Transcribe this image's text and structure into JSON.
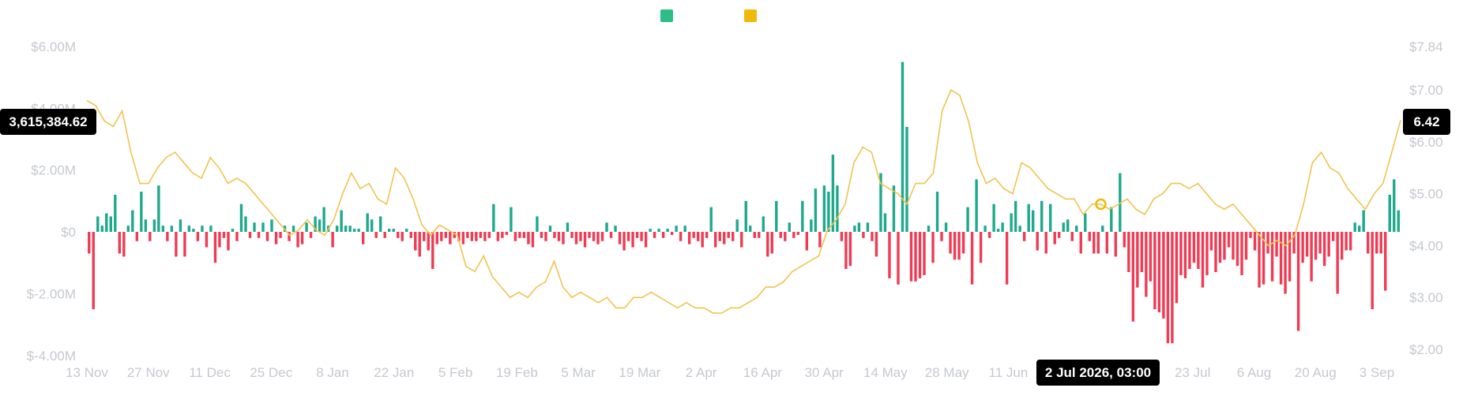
{
  "legend": [
    {
      "name": "",
      "color": "#2ebd85"
    },
    {
      "name": "",
      "color": "#f0b90b"
    }
  ],
  "colors": {
    "positive": "#1fa98c",
    "negative": "#ef3b54",
    "price_line": "#f0c350",
    "tick_text": "#c5c8ce",
    "badge_bg": "#000000"
  },
  "chart_data": {
    "type": "bar",
    "x_ticks": [
      "13 Nov",
      "27 Nov",
      "11 Dec",
      "25 Dec",
      "8 Jan",
      "22 Jan",
      "5 Feb",
      "19 Feb",
      "5 Mar",
      "19 Mar",
      "2 Apr",
      "16 Apr",
      "30 Apr",
      "14 May",
      "28 May",
      "11 Jun",
      "25 Jun",
      "9 Jul",
      "23 Jul",
      "6 Aug",
      "20 Aug",
      "3 Sep"
    ],
    "y_left": {
      "ticks": [
        "$6.00M",
        "$4.00M",
        "$2.00M",
        "$0",
        "$-2.00M",
        "$-4.00M"
      ],
      "values": [
        6000000,
        4000000,
        2000000,
        0,
        -2000000,
        -4000000
      ],
      "ylim": [
        -4000000,
        6000000
      ]
    },
    "y_right": {
      "ticks": [
        "$7.84",
        "$7.00",
        "$6.00",
        "$5.00",
        "$4.00",
        "$3.00",
        "$2.00"
      ],
      "values": [
        7.84,
        7,
        6,
        5,
        4,
        3,
        2
      ],
      "ylim": [
        2,
        7.84
      ]
    },
    "series": [
      {
        "kind": "bars",
        "values": [
          -700000,
          -2500000,
          500000,
          200000,
          600000,
          500000,
          1200000,
          -700000,
          -800000,
          200000,
          700000,
          -300000,
          1300000,
          400000,
          -300000,
          400000,
          1500000,
          200000,
          -300000,
          200000,
          -800000,
          400000,
          -800000,
          200000,
          100000,
          -300000,
          200000,
          -500000,
          200000,
          -1000000,
          -500000,
          -200000,
          -600000,
          100000,
          -300000,
          900000,
          500000,
          -200000,
          300000,
          -200000,
          300000,
          -300000,
          400000,
          -400000,
          -200000,
          200000,
          -300000,
          200000,
          -500000,
          -400000,
          300000,
          -200000,
          500000,
          400000,
          800000,
          200000,
          -500000,
          200000,
          700000,
          200000,
          200000,
          100000,
          100000,
          -400000,
          600000,
          400000,
          -200000,
          500000,
          -200000,
          100000,
          100000,
          -200000,
          -300000,
          100000,
          -200000,
          -600000,
          -800000,
          -300000,
          -600000,
          -1200000,
          -400000,
          -300000,
          -200000,
          -400000,
          -200000,
          -300000,
          -400000,
          -200000,
          -300000,
          -300000,
          -200000,
          -300000,
          -200000,
          900000,
          -300000,
          -200000,
          -100000,
          800000,
          -300000,
          -200000,
          -200000,
          -400000,
          -500000,
          500000,
          -200000,
          -300000,
          200000,
          -200000,
          -300000,
          -400000,
          300000,
          -200000,
          -400000,
          -300000,
          -500000,
          -200000,
          -300000,
          -400000,
          -300000,
          300000,
          -200000,
          200000,
          -400000,
          -600000,
          -300000,
          -500000,
          -200000,
          -300000,
          -500000,
          100000,
          -200000,
          100000,
          -200000,
          100000,
          -100000,
          200000,
          -300000,
          200000,
          -400000,
          -200000,
          -300000,
          -500000,
          -200000,
          800000,
          -500000,
          -300000,
          -400000,
          -200000,
          -300000,
          400000,
          -500000,
          1000000,
          200000,
          -200000,
          -200000,
          500000,
          -800000,
          -700000,
          1000000,
          -200000,
          -300000,
          300000,
          -200000,
          -100000,
          1000000,
          -600000,
          400000,
          1400000,
          -500000,
          1500000,
          1300000,
          2500000,
          1500000,
          -300000,
          -1200000,
          -1100000,
          200000,
          300000,
          -200000,
          300000,
          -300000,
          -800000,
          1900000,
          600000,
          -1500000,
          1500000,
          -1700000,
          5500000,
          3400000,
          -1600000,
          -1600000,
          -1500000,
          -1400000,
          200000,
          -1000000,
          1300000,
          -300000,
          300000,
          -700000,
          -900000,
          -900000,
          -700000,
          800000,
          -1700000,
          1700000,
          -1000000,
          200000,
          -200000,
          900000,
          100000,
          300000,
          -1700000,
          600000,
          1000000,
          200000,
          -300000,
          900000,
          700000,
          -600000,
          1000000,
          -700000,
          900000,
          -400000,
          -200000,
          300000,
          400000,
          -300000,
          200000,
          -700000,
          600000,
          -300000,
          -700000,
          -700000,
          200000,
          -700000,
          800000,
          -800000,
          1900000,
          -500000,
          -1300000,
          -2900000,
          -1800000,
          -1300000,
          -2100000,
          -1600000,
          -2500000,
          -2600000,
          -2800000,
          -3600000,
          -3600000,
          -2300000,
          -1400000,
          -1500000,
          -1200000,
          -1000000,
          -1200000,
          -1800000,
          -1400000,
          -600000,
          -1300000,
          -1000000,
          -900000,
          -500000,
          -900000,
          -1100000,
          -1400000,
          -900000,
          -200000,
          -600000,
          -1800000,
          -1700000,
          -700000,
          -1600000,
          -800000,
          -1700000,
          -2000000,
          -1600000,
          -700000,
          -3200000,
          -1000000,
          -800000,
          -1600000,
          -900000,
          -700000,
          -1100000,
          -800000,
          -300000,
          -2000000,
          -900000,
          -600000,
          -600000,
          300000,
          200000,
          700000,
          -700000,
          -2500000,
          -700000,
          -700000,
          -1900000,
          1200000,
          1700000,
          700000
        ]
      },
      {
        "kind": "line",
        "values": [
          6.8,
          6.7,
          6.4,
          6.3,
          6.6,
          5.8,
          5.2,
          5.2,
          5.5,
          5.7,
          5.8,
          5.6,
          5.4,
          5.3,
          5.7,
          5.5,
          5.2,
          5.3,
          5.2,
          5.0,
          4.8,
          4.6,
          4.4,
          4.2,
          4.3,
          4.5,
          4.3,
          4.2,
          4.5,
          5.0,
          5.4,
          5.1,
          5.2,
          4.9,
          4.8,
          5.5,
          5.3,
          4.9,
          4.4,
          4.2,
          4.4,
          4.3,
          4.2,
          3.6,
          3.5,
          3.8,
          3.4,
          3.2,
          3.0,
          3.1,
          3.0,
          3.2,
          3.3,
          3.7,
          3.2,
          3.0,
          3.1,
          3.0,
          2.9,
          3.0,
          2.8,
          2.8,
          3.0,
          3.0,
          3.1,
          3.0,
          2.9,
          2.8,
          2.9,
          2.8,
          2.8,
          2.7,
          2.7,
          2.8,
          2.8,
          2.9,
          3.0,
          3.2,
          3.2,
          3.3,
          3.5,
          3.6,
          3.7,
          3.8,
          4.3,
          4.5,
          4.8,
          5.6,
          5.9,
          5.8,
          5.2,
          5.1,
          5.0,
          4.8,
          5.2,
          5.2,
          5.4,
          6.6,
          7.0,
          6.9,
          6.4,
          5.6,
          5.2,
          5.3,
          5.1,
          5.0,
          5.6,
          5.5,
          5.3,
          5.1,
          5.0,
          4.9,
          4.9,
          4.6,
          4.8,
          4.8,
          4.7,
          4.8,
          4.9,
          4.7,
          4.6,
          4.9,
          5.0,
          5.2,
          5.2,
          5.1,
          5.2,
          5.0,
          4.8,
          4.7,
          4.8,
          4.6,
          4.4,
          4.2,
          4.0,
          4.1,
          4.0,
          4.2,
          4.8,
          5.6,
          5.8,
          5.5,
          5.4,
          5.1,
          4.9,
          4.7,
          5.0,
          5.2,
          5.8,
          6.42
        ]
      }
    ],
    "crosshair_point": {
      "x_label": "2 Jul 2026, 03:00"
    },
    "badges": {
      "left": "3,615,384.62",
      "right": "6.42",
      "bottom": "2 Jul 2026, 03:00"
    },
    "grid": false,
    "legend_position": "top-center"
  }
}
